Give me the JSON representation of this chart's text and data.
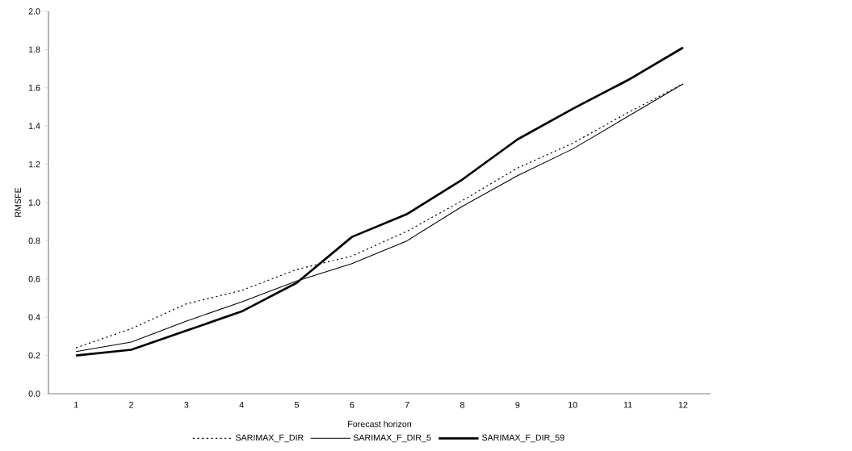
{
  "chart_data": {
    "type": "line",
    "xlabel": "Forecast horizon",
    "ylabel": "RMSFE",
    "categories": [
      "1",
      "2",
      "3",
      "4",
      "5",
      "6",
      "7",
      "8",
      "9",
      "10",
      "11",
      "12"
    ],
    "series": [
      {
        "name": "SARIMAX_F_DIR",
        "color": "#000000",
        "line_style": "dotted",
        "values": [
          0.24,
          0.34,
          0.47,
          0.54,
          0.65,
          0.72,
          0.85,
          1.01,
          1.18,
          1.31,
          1.47,
          1.62
        ]
      },
      {
        "name": "SARIMAX_F_DIR_5",
        "color": "#000000",
        "line_style": "solid",
        "values": [
          0.22,
          0.27,
          0.38,
          0.48,
          0.59,
          0.68,
          0.8,
          0.98,
          1.14,
          1.28,
          1.45,
          1.62
        ]
      },
      {
        "name": "SARIMAX_F_DIR_59",
        "color": "#000000",
        "line_style": "solid",
        "values": [
          0.2,
          0.23,
          0.33,
          0.43,
          0.58,
          0.82,
          0.94,
          1.12,
          1.33,
          1.49,
          1.64,
          1.81
        ]
      }
    ],
    "ylim": [
      0,
      2.0
    ],
    "yticks": [
      {
        "value": 0,
        "label": "0.0"
      },
      {
        "value": 0.2,
        "label": "0.2"
      },
      {
        "value": 0.4,
        "label": "0.4"
      },
      {
        "value": 0.6,
        "label": "0.6"
      },
      {
        "value": 0.8,
        "label": "0.8"
      },
      {
        "value": 1.0,
        "label": "1.0"
      },
      {
        "value": 1.2,
        "label": "1.2"
      },
      {
        "value": 1.4,
        "label": "1.4"
      },
      {
        "value": 1.6,
        "label": "1.6"
      },
      {
        "value": 1.8,
        "label": "1.8"
      },
      {
        "value": 2.0,
        "label": "2.0"
      }
    ],
    "grid": false,
    "legend": "bottom",
    "marker": "none"
  }
}
